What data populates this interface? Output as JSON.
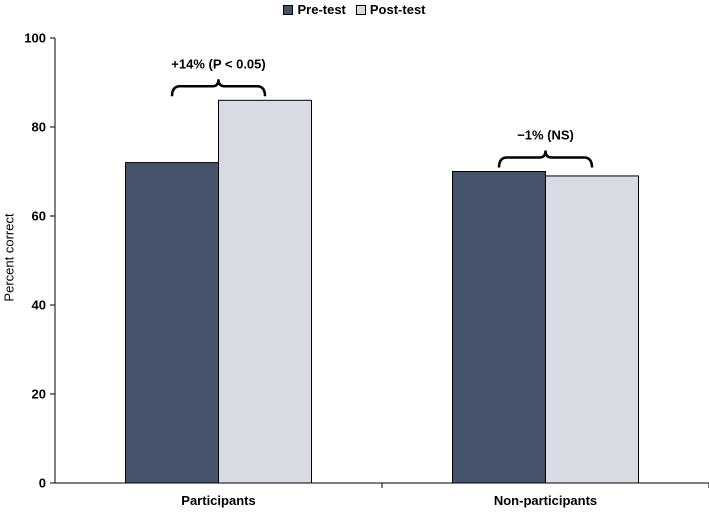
{
  "chart_data": {
    "type": "bar",
    "title": "",
    "xlabel": "",
    "ylabel": "Percent correct",
    "ylim": [
      0,
      100
    ],
    "yticks": [
      "0",
      "20",
      "40",
      "60",
      "80",
      "100"
    ],
    "categories": [
      "Participants",
      "Non-participants"
    ],
    "series": [
      {
        "name": "Pre-test",
        "values": [
          72,
          70
        ],
        "color": "#46546a"
      },
      {
        "name": "Post-test",
        "values": [
          86,
          69
        ],
        "color": "#d8dbe3"
      }
    ],
    "annotations": [
      {
        "category": "Participants",
        "text": "+14% (P < 0.05)"
      },
      {
        "category": "Non-participants",
        "text": "−1% (NS)"
      }
    ],
    "legend_position": "top-center",
    "grid": false
  }
}
